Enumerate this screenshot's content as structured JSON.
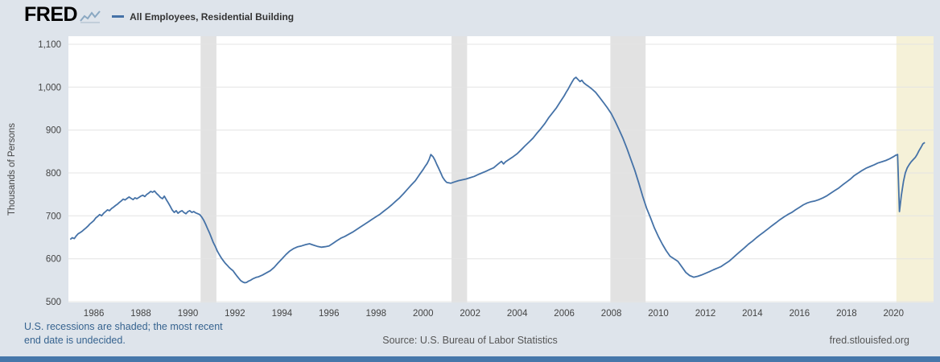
{
  "page": {
    "bg_color": "#dee4eb",
    "plot_bg_color": "#ffffff",
    "bottom_bar_color": "#4677aa"
  },
  "header": {
    "logo": "FRED",
    "legend_label": "All Employees, Residential Building"
  },
  "footer": {
    "recession_note_line1": "U.S. recessions are shaded; the most recent",
    "recession_note_line2": "end date is undecided.",
    "source": "Source: U.S. Bureau of Labor Statistics",
    "site": "fred.stlouisfed.org"
  },
  "chart_data": {
    "type": "line",
    "title": "All Employees, Residential Building",
    "ylabel": "Thousands of Persons",
    "xlabel": "",
    "ylim": [
      500,
      1100
    ],
    "xlim": [
      1984.92,
      2021.7
    ],
    "grid": "horizontal",
    "grid_color": "#e4e4e4",
    "tick_color": "#444444",
    "y_ticks": [
      500,
      600,
      700,
      800,
      900,
      1000,
      1100
    ],
    "y_tick_labels": [
      "500",
      "600",
      "700",
      "800",
      "900",
      "1,000",
      "1,100"
    ],
    "x_ticks": [
      1986,
      1988,
      1990,
      1992,
      1994,
      1996,
      1998,
      2000,
      2002,
      2004,
      2006,
      2008,
      2010,
      2012,
      2014,
      2016,
      2018,
      2020
    ],
    "legend_position": "top-left",
    "recessions": [
      {
        "start": 1990.54,
        "end": 1991.21,
        "color": "#e2e2e2"
      },
      {
        "start": 2001.21,
        "end": 2001.87,
        "color": "#e2e2e2"
      },
      {
        "start": 2007.96,
        "end": 2009.46,
        "color": "#e2e2e2"
      },
      {
        "start": 2020.12,
        "end": 2021.7,
        "color": "#f5f1d8"
      }
    ],
    "series": [
      {
        "name": "All Employees, Residential Building",
        "color": "#4572a7",
        "points": [
          [
            1985.0,
            645
          ],
          [
            1985.08,
            649
          ],
          [
            1985.17,
            647
          ],
          [
            1985.25,
            653
          ],
          [
            1985.33,
            658
          ],
          [
            1985.42,
            661
          ],
          [
            1985.5,
            664
          ],
          [
            1985.58,
            668
          ],
          [
            1985.67,
            672
          ],
          [
            1985.75,
            676
          ],
          [
            1985.83,
            681
          ],
          [
            1985.92,
            685
          ],
          [
            1986.0,
            689
          ],
          [
            1986.08,
            695
          ],
          [
            1986.17,
            699
          ],
          [
            1986.25,
            703
          ],
          [
            1986.33,
            700
          ],
          [
            1986.42,
            706
          ],
          [
            1986.5,
            710
          ],
          [
            1986.58,
            714
          ],
          [
            1986.67,
            712
          ],
          [
            1986.75,
            717
          ],
          [
            1986.83,
            720
          ],
          [
            1986.92,
            724
          ],
          [
            1987.0,
            727
          ],
          [
            1987.08,
            731
          ],
          [
            1987.17,
            735
          ],
          [
            1987.25,
            739
          ],
          [
            1987.33,
            737
          ],
          [
            1987.42,
            741
          ],
          [
            1987.5,
            744
          ],
          [
            1987.58,
            741
          ],
          [
            1987.67,
            738
          ],
          [
            1987.75,
            742
          ],
          [
            1987.83,
            740
          ],
          [
            1987.92,
            743
          ],
          [
            1988.0,
            746
          ],
          [
            1988.08,
            748
          ],
          [
            1988.17,
            745
          ],
          [
            1988.25,
            750
          ],
          [
            1988.33,
            753
          ],
          [
            1988.42,
            757
          ],
          [
            1988.5,
            755
          ],
          [
            1988.58,
            758
          ],
          [
            1988.67,
            752
          ],
          [
            1988.75,
            748
          ],
          [
            1988.83,
            743
          ],
          [
            1988.92,
            740
          ],
          [
            1989.0,
            746
          ],
          [
            1989.08,
            738
          ],
          [
            1989.17,
            730
          ],
          [
            1989.25,
            722
          ],
          [
            1989.33,
            714
          ],
          [
            1989.42,
            708
          ],
          [
            1989.5,
            712
          ],
          [
            1989.58,
            706
          ],
          [
            1989.67,
            710
          ],
          [
            1989.75,
            712
          ],
          [
            1989.83,
            708
          ],
          [
            1989.92,
            705
          ],
          [
            1990.0,
            710
          ],
          [
            1990.08,
            712
          ],
          [
            1990.17,
            708
          ],
          [
            1990.25,
            710
          ],
          [
            1990.33,
            707
          ],
          [
            1990.42,
            705
          ],
          [
            1990.5,
            703
          ],
          [
            1990.58,
            698
          ],
          [
            1990.67,
            690
          ],
          [
            1990.75,
            681
          ],
          [
            1990.83,
            671
          ],
          [
            1990.92,
            660
          ],
          [
            1991.0,
            649
          ],
          [
            1991.08,
            638
          ],
          [
            1991.17,
            628
          ],
          [
            1991.25,
            618
          ],
          [
            1991.33,
            610
          ],
          [
            1991.42,
            602
          ],
          [
            1991.5,
            596
          ],
          [
            1991.58,
            590
          ],
          [
            1991.67,
            585
          ],
          [
            1991.75,
            580
          ],
          [
            1991.83,
            576
          ],
          [
            1991.92,
            572
          ],
          [
            1992.0,
            566
          ],
          [
            1992.08,
            560
          ],
          [
            1992.17,
            554
          ],
          [
            1992.25,
            549
          ],
          [
            1992.33,
            546
          ],
          [
            1992.42,
            544
          ],
          [
            1992.5,
            545
          ],
          [
            1992.58,
            548
          ],
          [
            1992.67,
            550
          ],
          [
            1992.75,
            553
          ],
          [
            1992.83,
            555
          ],
          [
            1992.92,
            557
          ],
          [
            1993.0,
            558
          ],
          [
            1993.17,
            562
          ],
          [
            1993.33,
            567
          ],
          [
            1993.5,
            572
          ],
          [
            1993.67,
            580
          ],
          [
            1993.83,
            590
          ],
          [
            1994.0,
            600
          ],
          [
            1994.17,
            610
          ],
          [
            1994.33,
            618
          ],
          [
            1994.5,
            624
          ],
          [
            1994.67,
            628
          ],
          [
            1994.83,
            630
          ],
          [
            1995.0,
            633
          ],
          [
            1995.17,
            635
          ],
          [
            1995.33,
            632
          ],
          [
            1995.5,
            629
          ],
          [
            1995.67,
            627
          ],
          [
            1995.83,
            628
          ],
          [
            1996.0,
            630
          ],
          [
            1996.17,
            636
          ],
          [
            1996.33,
            642
          ],
          [
            1996.5,
            648
          ],
          [
            1996.67,
            652
          ],
          [
            1996.83,
            657
          ],
          [
            1997.0,
            662
          ],
          [
            1997.17,
            668
          ],
          [
            1997.33,
            674
          ],
          [
            1997.5,
            680
          ],
          [
            1997.67,
            686
          ],
          [
            1997.83,
            692
          ],
          [
            1998.0,
            698
          ],
          [
            1998.17,
            704
          ],
          [
            1998.33,
            711
          ],
          [
            1998.5,
            718
          ],
          [
            1998.67,
            726
          ],
          [
            1998.83,
            734
          ],
          [
            1999.0,
            742
          ],
          [
            1999.17,
            752
          ],
          [
            1999.33,
            762
          ],
          [
            1999.5,
            772
          ],
          [
            1999.67,
            782
          ],
          [
            1999.83,
            795
          ],
          [
            2000.0,
            808
          ],
          [
            2000.08,
            815
          ],
          [
            2000.17,
            822
          ],
          [
            2000.25,
            831
          ],
          [
            2000.33,
            843
          ],
          [
            2000.42,
            838
          ],
          [
            2000.5,
            830
          ],
          [
            2000.58,
            820
          ],
          [
            2000.67,
            810
          ],
          [
            2000.75,
            800
          ],
          [
            2000.83,
            790
          ],
          [
            2000.92,
            783
          ],
          [
            2001.0,
            778
          ],
          [
            2001.17,
            776
          ],
          [
            2001.33,
            779
          ],
          [
            2001.5,
            782
          ],
          [
            2001.67,
            784
          ],
          [
            2001.83,
            786
          ],
          [
            2002.0,
            789
          ],
          [
            2002.17,
            792
          ],
          [
            2002.33,
            796
          ],
          [
            2002.5,
            800
          ],
          [
            2002.67,
            804
          ],
          [
            2002.83,
            808
          ],
          [
            2003.0,
            812
          ],
          [
            2003.17,
            820
          ],
          [
            2003.33,
            827
          ],
          [
            2003.42,
            821
          ],
          [
            2003.5,
            826
          ],
          [
            2003.67,
            832
          ],
          [
            2003.83,
            838
          ],
          [
            2004.0,
            845
          ],
          [
            2004.17,
            854
          ],
          [
            2004.33,
            863
          ],
          [
            2004.5,
            872
          ],
          [
            2004.67,
            881
          ],
          [
            2004.83,
            892
          ],
          [
            2005.0,
            903
          ],
          [
            2005.17,
            915
          ],
          [
            2005.33,
            928
          ],
          [
            2005.5,
            940
          ],
          [
            2005.67,
            952
          ],
          [
            2005.83,
            966
          ],
          [
            2006.0,
            980
          ],
          [
            2006.08,
            988
          ],
          [
            2006.17,
            996
          ],
          [
            2006.25,
            1004
          ],
          [
            2006.33,
            1012
          ],
          [
            2006.42,
            1020
          ],
          [
            2006.5,
            1023
          ],
          [
            2006.58,
            1018
          ],
          [
            2006.67,
            1013
          ],
          [
            2006.75,
            1016
          ],
          [
            2006.83,
            1010
          ],
          [
            2006.92,
            1006
          ],
          [
            2007.0,
            1003
          ],
          [
            2007.17,
            996
          ],
          [
            2007.33,
            988
          ],
          [
            2007.5,
            976
          ],
          [
            2007.67,
            964
          ],
          [
            2007.83,
            952
          ],
          [
            2008.0,
            938
          ],
          [
            2008.17,
            920
          ],
          [
            2008.33,
            901
          ],
          [
            2008.5,
            880
          ],
          [
            2008.67,
            856
          ],
          [
            2008.83,
            832
          ],
          [
            2009.0,
            806
          ],
          [
            2009.17,
            776
          ],
          [
            2009.33,
            746
          ],
          [
            2009.5,
            718
          ],
          [
            2009.67,
            695
          ],
          [
            2009.83,
            672
          ],
          [
            2010.0,
            652
          ],
          [
            2010.17,
            634
          ],
          [
            2010.33,
            619
          ],
          [
            2010.5,
            606
          ],
          [
            2010.67,
            600
          ],
          [
            2010.83,
            594
          ],
          [
            2011.0,
            581
          ],
          [
            2011.17,
            568
          ],
          [
            2011.33,
            561
          ],
          [
            2011.5,
            557
          ],
          [
            2011.67,
            559
          ],
          [
            2011.83,
            562
          ],
          [
            2012.0,
            566
          ],
          [
            2012.17,
            570
          ],
          [
            2012.33,
            574
          ],
          [
            2012.5,
            578
          ],
          [
            2012.67,
            582
          ],
          [
            2012.83,
            588
          ],
          [
            2013.0,
            594
          ],
          [
            2013.17,
            602
          ],
          [
            2013.33,
            610
          ],
          [
            2013.5,
            618
          ],
          [
            2013.67,
            626
          ],
          [
            2013.83,
            634
          ],
          [
            2014.0,
            641
          ],
          [
            2014.17,
            649
          ],
          [
            2014.33,
            656
          ],
          [
            2014.5,
            663
          ],
          [
            2014.67,
            670
          ],
          [
            2014.83,
            677
          ],
          [
            2015.0,
            684
          ],
          [
            2015.17,
            691
          ],
          [
            2015.33,
            697
          ],
          [
            2015.5,
            703
          ],
          [
            2015.67,
            708
          ],
          [
            2015.83,
            714
          ],
          [
            2016.0,
            720
          ],
          [
            2016.17,
            726
          ],
          [
            2016.33,
            730
          ],
          [
            2016.5,
            733
          ],
          [
            2016.67,
            735
          ],
          [
            2016.83,
            738
          ],
          [
            2017.0,
            742
          ],
          [
            2017.17,
            747
          ],
          [
            2017.33,
            753
          ],
          [
            2017.5,
            759
          ],
          [
            2017.67,
            765
          ],
          [
            2017.83,
            772
          ],
          [
            2018.0,
            779
          ],
          [
            2018.17,
            786
          ],
          [
            2018.33,
            794
          ],
          [
            2018.5,
            800
          ],
          [
            2018.67,
            806
          ],
          [
            2018.83,
            811
          ],
          [
            2019.0,
            815
          ],
          [
            2019.17,
            819
          ],
          [
            2019.33,
            823
          ],
          [
            2019.5,
            826
          ],
          [
            2019.67,
            829
          ],
          [
            2019.83,
            833
          ],
          [
            2020.0,
            838
          ],
          [
            2020.08,
            841
          ],
          [
            2020.17,
            843
          ],
          [
            2020.25,
            710
          ],
          [
            2020.33,
            748
          ],
          [
            2020.42,
            780
          ],
          [
            2020.5,
            800
          ],
          [
            2020.58,
            812
          ],
          [
            2020.67,
            820
          ],
          [
            2020.75,
            826
          ],
          [
            2020.83,
            831
          ],
          [
            2020.92,
            836
          ],
          [
            2021.0,
            843
          ],
          [
            2021.08,
            852
          ],
          [
            2021.17,
            860
          ],
          [
            2021.25,
            868
          ],
          [
            2021.33,
            871
          ]
        ]
      }
    ]
  }
}
